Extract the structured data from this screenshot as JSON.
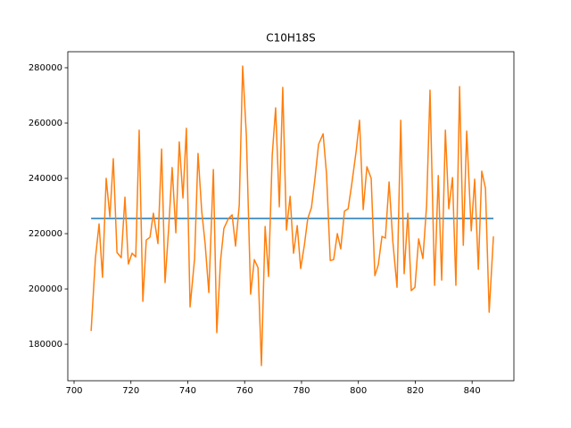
{
  "chart_data": {
    "type": "line",
    "title": "C10H18S",
    "xlim": [
      697.8,
      854.7
    ],
    "ylim": [
      166800,
      285800
    ],
    "xticks": [
      700,
      720,
      740,
      760,
      780,
      800,
      820,
      840
    ],
    "yticks": [
      180000,
      200000,
      220000,
      240000,
      260000,
      280000
    ],
    "series": [
      {
        "color": "#1f77b4",
        "x": [
          706.0,
          847.5
        ],
        "values": [
          225500,
          225500
        ]
      },
      {
        "color": "#ff7f0e",
        "x": [
          706.0,
          707.5,
          708.8,
          710.0,
          711.3,
          712.6,
          713.8,
          715.1,
          716.6,
          717.9,
          719.1,
          720.4,
          721.7,
          722.9,
          724.2,
          725.4,
          726.7,
          727.9,
          729.5,
          730.8,
          732.0,
          733.3,
          734.5,
          735.8,
          737.0,
          738.3,
          739.5,
          740.8,
          742.4,
          743.6,
          744.9,
          746.1,
          747.4,
          749.0,
          750.2,
          751.5,
          752.7,
          754.3,
          755.6,
          756.8,
          758.1,
          759.3,
          760.6,
          762.1,
          763.4,
          764.7,
          765.9,
          767.2,
          768.4,
          769.7,
          770.9,
          772.2,
          773.4,
          774.7,
          776.0,
          777.2,
          778.5,
          779.7,
          781.0,
          782.2,
          783.5,
          784.7,
          786.0,
          787.6,
          788.8,
          790.1,
          791.3,
          792.6,
          793.8,
          795.1,
          796.4,
          797.6,
          799.2,
          800.4,
          801.7,
          803.0,
          804.5,
          805.8,
          807.0,
          808.3,
          809.5,
          810.8,
          812.1,
          813.6,
          814.9,
          816.1,
          817.4,
          818.6,
          819.9,
          821.2,
          822.7,
          824.0,
          825.2,
          826.8,
          828.1,
          829.3,
          830.6,
          831.8,
          833.1,
          834.3,
          835.6,
          836.9,
          838.1,
          839.7,
          840.9,
          842.2,
          843.4,
          844.7,
          846.0,
          847.5
        ],
        "values": [
          184800,
          211000,
          223500,
          204200,
          240000,
          226100,
          247100,
          213200,
          211300,
          233200,
          209000,
          212900,
          211600,
          257400,
          195500,
          217700,
          218700,
          227400,
          216400,
          250600,
          202300,
          222300,
          243900,
          220300,
          253200,
          232900,
          258100,
          193500,
          211000,
          249000,
          228100,
          216400,
          198700,
          243200,
          184200,
          210000,
          221900,
          225500,
          226800,
          215500,
          230300,
          280600,
          255500,
          198100,
          210600,
          207700,
          172300,
          222600,
          204500,
          248400,
          265500,
          229700,
          272900,
          221300,
          233500,
          212900,
          222900,
          207400,
          215800,
          225500,
          229400,
          239700,
          252300,
          256100,
          241600,
          210300,
          210600,
          220000,
          214500,
          228100,
          229000,
          237400,
          249700,
          261000,
          228700,
          244200,
          240000,
          204800,
          208700,
          219000,
          218400,
          238700,
          217400,
          200600,
          261000,
          205500,
          227400,
          199400,
          200600,
          218100,
          211000,
          230300,
          271900,
          201300,
          241000,
          203200,
          257400,
          229000,
          240300,
          201300,
          273200,
          215800,
          257100,
          221000,
          239700,
          207100,
          242600,
          236400,
          191600,
          219000
        ]
      }
    ]
  }
}
